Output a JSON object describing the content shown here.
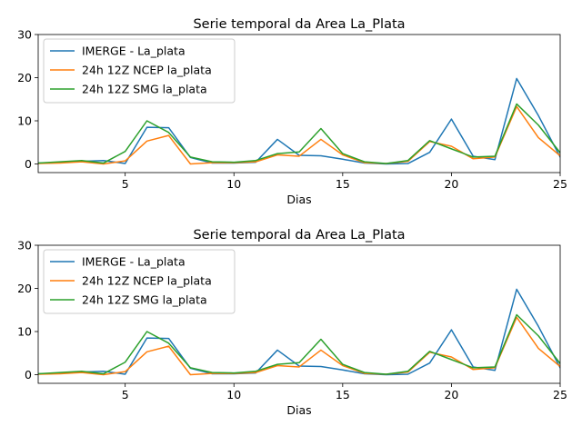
{
  "chart_data": [
    {
      "type": "line",
      "title": "Serie temporal da Area La_Plata",
      "xlabel": "Dias",
      "ylabel": "",
      "xlim": [
        1,
        25
      ],
      "ylim": [
        -2,
        30
      ],
      "xticks": [
        5,
        10,
        15,
        20,
        25
      ],
      "yticks": [
        0,
        10,
        20,
        30
      ],
      "legend_position": "upper-left",
      "x": [
        1,
        2,
        3,
        4,
        5,
        6,
        7,
        8,
        9,
        10,
        11,
        12,
        13,
        14,
        15,
        16,
        17,
        18,
        19,
        20,
        21,
        22,
        23,
        24,
        25
      ],
      "series": [
        {
          "name": "IMERGE - La_plata",
          "color": "#1f77b4",
          "values": [
            0.2,
            0.3,
            0.6,
            0.8,
            0.1,
            8.5,
            8.4,
            1.5,
            0.2,
            0.2,
            0.4,
            5.7,
            2.0,
            1.9,
            1.1,
            0.2,
            0.0,
            0.1,
            2.7,
            10.4,
            1.8,
            1.0,
            19.8,
            11.2,
            1.6
          ]
        },
        {
          "name": "24h 12Z NCEP la_plata",
          "color": "#ff7f0e",
          "values": [
            0.1,
            0.2,
            0.5,
            0.0,
            0.7,
            5.3,
            6.6,
            0.0,
            0.3,
            0.3,
            0.5,
            2.1,
            1.8,
            5.7,
            2.1,
            0.3,
            0.1,
            0.6,
            5.2,
            4.1,
            1.2,
            1.6,
            13.3,
            6.1,
            1.9
          ]
        },
        {
          "name": "24h 12Z SMG la_plata",
          "color": "#2ca02c",
          "values": [
            0.2,
            0.5,
            0.8,
            0.2,
            2.9,
            10.0,
            7.3,
            1.6,
            0.5,
            0.4,
            0.8,
            2.4,
            2.8,
            8.2,
            2.4,
            0.5,
            0.1,
            0.8,
            5.4,
            3.5,
            1.6,
            1.8,
            13.9,
            9.0,
            2.6
          ]
        }
      ]
    },
    {
      "type": "line",
      "title": "Serie temporal da Area La_Plata",
      "xlabel": "Dias",
      "ylabel": "",
      "xlim": [
        1,
        25
      ],
      "ylim": [
        -2,
        30
      ],
      "xticks": [
        5,
        10,
        15,
        20,
        25
      ],
      "yticks": [
        0,
        10,
        20,
        30
      ],
      "legend_position": "upper-left",
      "x": [
        1,
        2,
        3,
        4,
        5,
        6,
        7,
        8,
        9,
        10,
        11,
        12,
        13,
        14,
        15,
        16,
        17,
        18,
        19,
        20,
        21,
        22,
        23,
        24,
        25
      ],
      "series": [
        {
          "name": "IMERGE - La_plata",
          "color": "#1f77b4",
          "values": [
            0.2,
            0.3,
            0.6,
            0.8,
            0.1,
            8.5,
            8.4,
            1.5,
            0.2,
            0.2,
            0.4,
            5.7,
            2.0,
            1.9,
            1.1,
            0.2,
            0.0,
            0.1,
            2.7,
            10.4,
            1.8,
            1.0,
            19.8,
            11.2,
            1.6
          ]
        },
        {
          "name": "24h 12Z NCEP la_plata",
          "color": "#ff7f0e",
          "values": [
            0.1,
            0.2,
            0.5,
            0.0,
            0.7,
            5.3,
            6.6,
            0.0,
            0.3,
            0.3,
            0.5,
            2.1,
            1.8,
            5.7,
            2.1,
            0.3,
            0.1,
            0.6,
            5.2,
            4.1,
            1.2,
            1.6,
            13.3,
            6.1,
            1.9
          ]
        },
        {
          "name": "24h 12Z SMG la_plata",
          "color": "#2ca02c",
          "values": [
            0.2,
            0.5,
            0.8,
            0.2,
            2.9,
            10.0,
            7.3,
            1.6,
            0.5,
            0.4,
            0.8,
            2.4,
            2.8,
            8.2,
            2.4,
            0.5,
            0.1,
            0.8,
            5.4,
            3.5,
            1.6,
            1.8,
            13.9,
            9.0,
            2.6
          ]
        }
      ]
    }
  ]
}
